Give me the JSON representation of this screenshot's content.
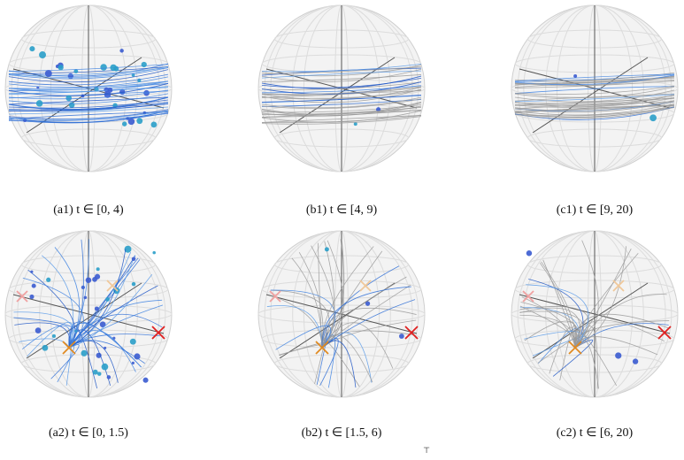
{
  "panels": [
    {
      "caption": "(a1) t ∈ [0, 4)"
    },
    {
      "caption": "(b1) t ∈ [4, 9)"
    },
    {
      "caption": "(c1) t ∈ [9, 20)"
    },
    {
      "caption": "(a2) t ∈ [0, 1.5)"
    },
    {
      "caption": "(b2) t ∈ [1.5, 6)"
    },
    {
      "caption": "(c2) t ∈ [6, 20)"
    }
  ],
  "footer_fragment": "⊤"
}
